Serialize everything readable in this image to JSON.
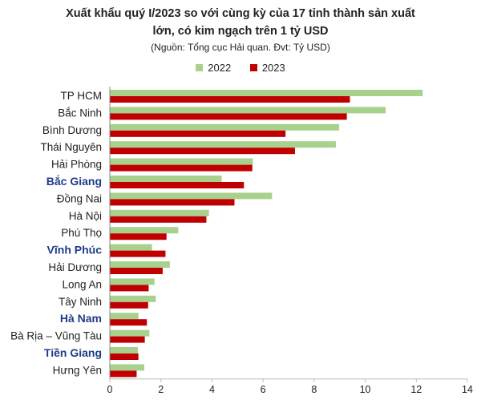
{
  "chart_data": {
    "type": "bar",
    "orientation": "horizontal",
    "title_line1": "Xuất khẩu quý I/2023 so với cùng kỳ của 17 tỉnh thành sản xuất",
    "title_line2": "lớn, có kim ngạch trên 1 tỷ USD",
    "subtitle": "(Nguồn: Tổng cục Hải quan. Đvt: Tỷ USD)",
    "categories": [
      "TP HCM",
      "Bắc Ninh",
      "Bình Dương",
      "Thái Nguyên",
      "Hải Phòng",
      "Bắc Giang",
      "Đồng Nai",
      "Hà Nội",
      "Phú Thọ",
      "Vĩnh Phúc",
      "Hải Dương",
      "Long An",
      "Tây Ninh",
      "Hà Nam",
      "Bà Rịa – Vũng Tàu",
      "Tiền Giang",
      "Hưng Yên"
    ],
    "highlighted": [
      "Bắc Giang",
      "Vĩnh Phúc",
      "Hà Nam",
      "Tiền Giang"
    ],
    "series": [
      {
        "name": "2022",
        "color": "#a9d18e",
        "values": [
          12.25,
          10.8,
          8.98,
          8.85,
          5.6,
          4.38,
          6.35,
          3.88,
          2.68,
          1.65,
          2.35,
          1.75,
          1.8,
          1.12,
          1.55,
          1.1,
          1.35
        ]
      },
      {
        "name": "2023",
        "color": "#c00000",
        "values": [
          9.4,
          9.28,
          6.88,
          7.25,
          5.58,
          5.25,
          4.88,
          3.78,
          2.22,
          2.18,
          2.07,
          1.52,
          1.5,
          1.45,
          1.37,
          1.12,
          1.05
        ]
      }
    ],
    "xticks": [
      0,
      2,
      4,
      6,
      8,
      10,
      12,
      14
    ],
    "xlim": [
      0,
      14
    ],
    "colors": {
      "highlight_label": "#1f3c88",
      "label": "#222222",
      "axis": "#888888"
    },
    "legend_position": "top"
  }
}
